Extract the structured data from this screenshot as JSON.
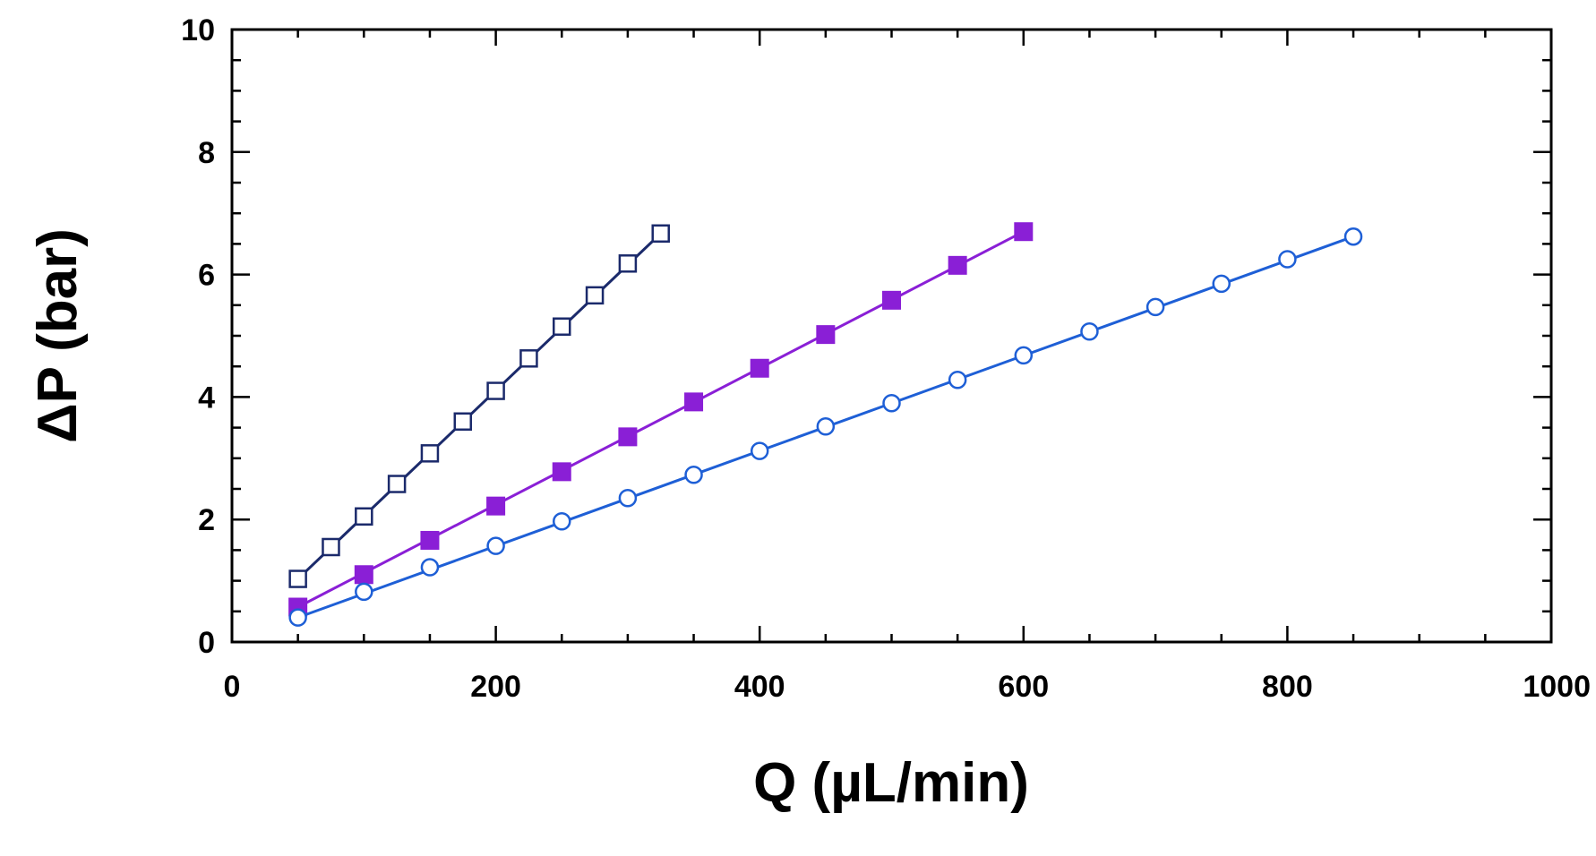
{
  "chart_data": {
    "type": "line",
    "title": "",
    "xlabel": "Q (µL/min)",
    "ylabel": "ΔP (bar)",
    "xlim": [
      0,
      1000
    ],
    "ylim": [
      0,
      10
    ],
    "xticks": [
      0,
      200,
      400,
      600,
      800,
      1000
    ],
    "yticks": [
      0,
      2,
      4,
      6,
      8,
      10
    ],
    "x_minor_step": 50,
    "y_minor_step": 0.5,
    "grid": false,
    "series": [
      {
        "name": "open squares",
        "marker": "square-open",
        "color": "#1b2a6b",
        "x": [
          50,
          75,
          100,
          125,
          150,
          175,
          200,
          225,
          250,
          275,
          300,
          325
        ],
        "y": [
          1.03,
          1.55,
          2.05,
          2.58,
          3.08,
          3.6,
          4.1,
          4.63,
          5.15,
          5.66,
          6.18,
          6.67
        ],
        "fit": [
          [
            50,
            1.03
          ],
          [
            325,
            6.67
          ]
        ]
      },
      {
        "name": "filled squares",
        "marker": "square-filled",
        "color": "#8a1fd6",
        "x": [
          50,
          100,
          150,
          200,
          250,
          300,
          350,
          400,
          450,
          500,
          550,
          600
        ],
        "y": [
          0.57,
          1.1,
          1.66,
          2.22,
          2.78,
          3.35,
          3.92,
          4.47,
          5.02,
          5.58,
          6.15,
          6.7
        ],
        "fit": [
          [
            50,
            0.57
          ],
          [
            600,
            6.7
          ]
        ]
      },
      {
        "name": "open circles",
        "marker": "circle-open",
        "color": "#1e5fd6",
        "x": [
          50,
          100,
          150,
          200,
          250,
          300,
          350,
          400,
          450,
          500,
          550,
          600,
          650,
          700,
          750,
          800,
          850
        ],
        "y": [
          0.4,
          0.82,
          1.22,
          1.57,
          1.97,
          2.35,
          2.73,
          3.12,
          3.52,
          3.9,
          4.28,
          4.68,
          5.07,
          5.47,
          5.85,
          6.25,
          6.62
        ],
        "fit": [
          [
            50,
            0.4
          ],
          [
            850,
            6.62
          ]
        ]
      }
    ]
  }
}
